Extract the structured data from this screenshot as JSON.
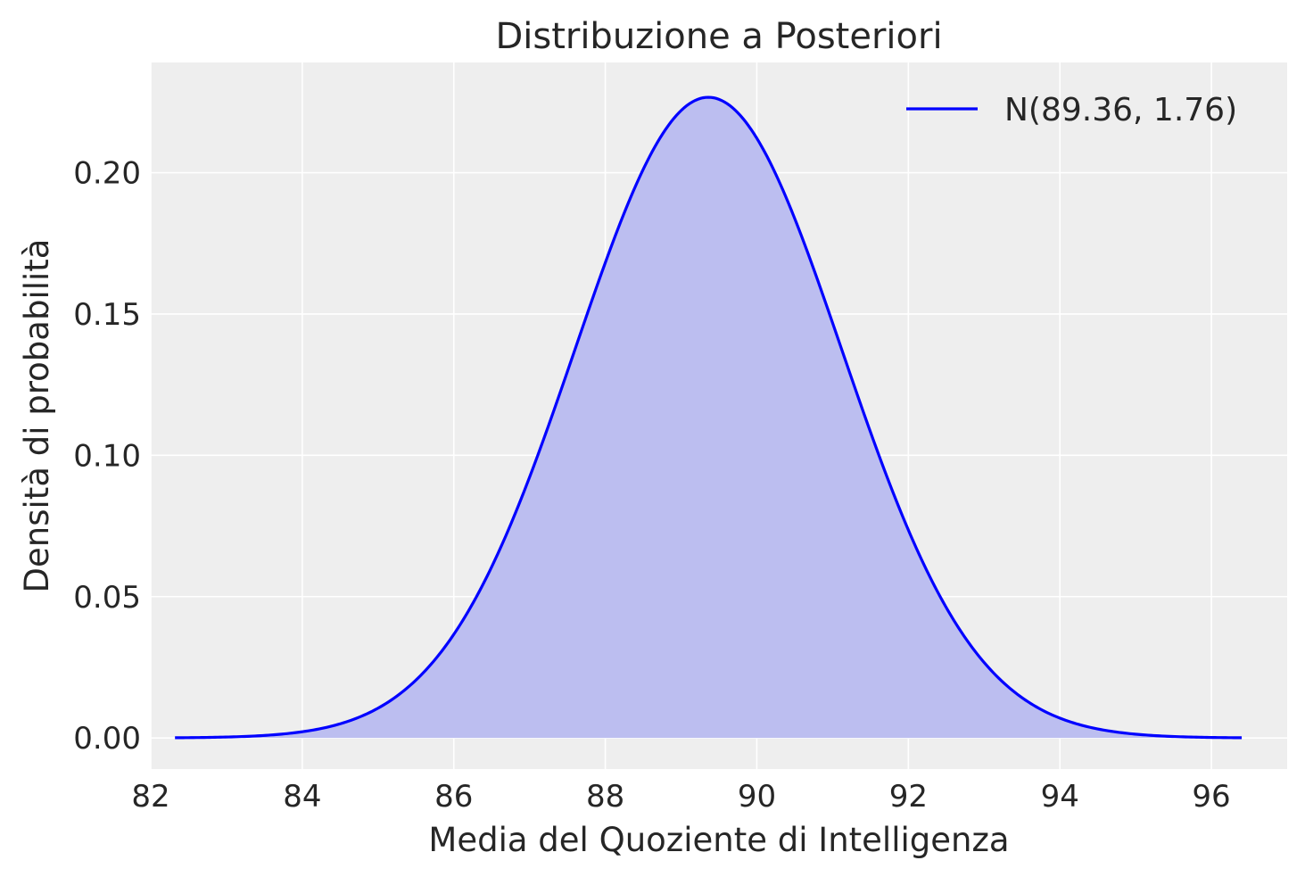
{
  "chart_data": {
    "type": "line",
    "title": "Distribuzione a Posteriori",
    "xlabel": "Media del Quoziente di Intelligenza",
    "ylabel": "Densità di probabilità",
    "xlim": [
      82.0,
      97.0
    ],
    "ylim": [
      -0.011,
      0.239
    ],
    "x_ticks": [
      82,
      84,
      86,
      88,
      90,
      92,
      94,
      96
    ],
    "y_ticks": [
      0.0,
      0.05,
      0.1,
      0.15,
      0.2
    ],
    "x_tick_labels": [
      "82",
      "84",
      "86",
      "88",
      "90",
      "92",
      "94",
      "96"
    ],
    "y_tick_labels": [
      "0.00",
      "0.05",
      "0.10",
      "0.15",
      "0.20"
    ],
    "grid": true,
    "legend_position": "top-right",
    "series": [
      {
        "name": "N(89.36, 1.76)",
        "distribution": "normal",
        "mean": 89.36,
        "sd": 1.76,
        "x_range": [
          82.32,
          96.4
        ],
        "filled": true,
        "line_color": "#0000ff",
        "fill_color": "#bcbef0"
      }
    ],
    "background_color": "#eeeeee",
    "grid_color": "#ffffff"
  }
}
